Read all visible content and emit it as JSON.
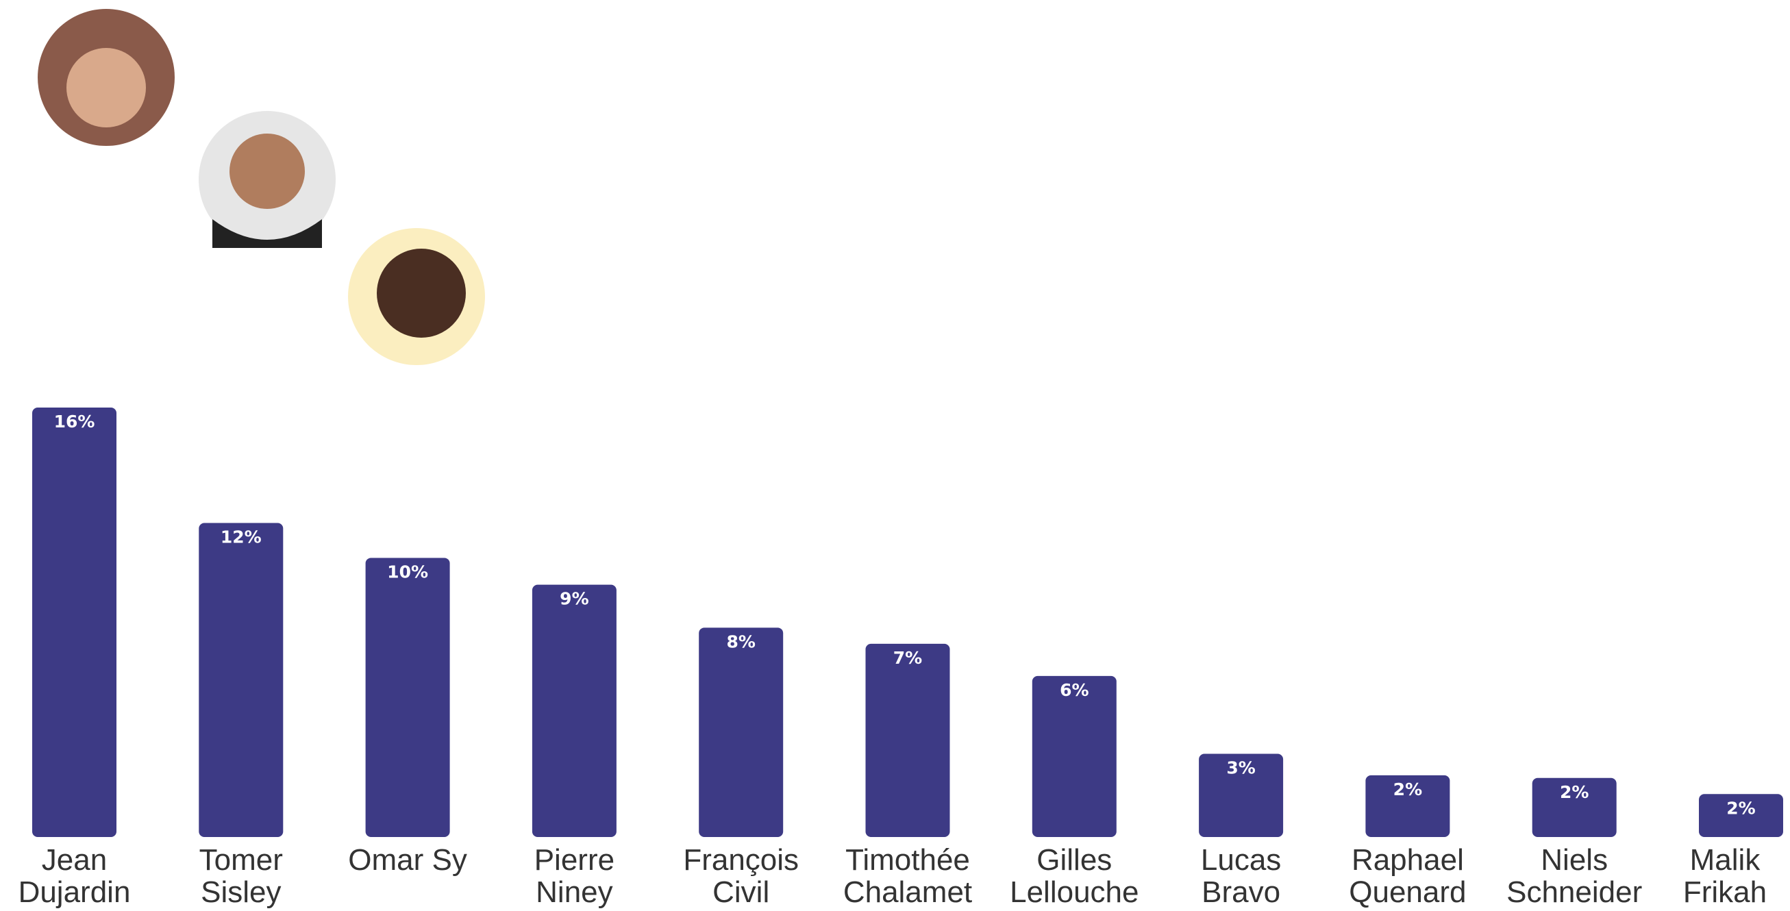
{
  "chart_data": {
    "type": "bar",
    "categories": [
      "Jean Dujardin",
      "Tomer Sisley",
      "Omar Sy",
      "Pierre Niney",
      "François Civil",
      "Timothée Chalamet",
      "Gilles Lellouche",
      "Lucas Bravo",
      "Raphael Quenard",
      "Niels Schneider",
      "Malik Frikah"
    ],
    "values": [
      16,
      11.7,
      10.4,
      9.4,
      7.8,
      7.2,
      6,
      3.1,
      2.3,
      2.2,
      1.6
    ],
    "value_labels": [
      "16%",
      "12%",
      "10%",
      "9%",
      "8%",
      "7%",
      "6%",
      "3%",
      "2%",
      "2%",
      "2%"
    ],
    "color": "#3d3a85"
  }
}
